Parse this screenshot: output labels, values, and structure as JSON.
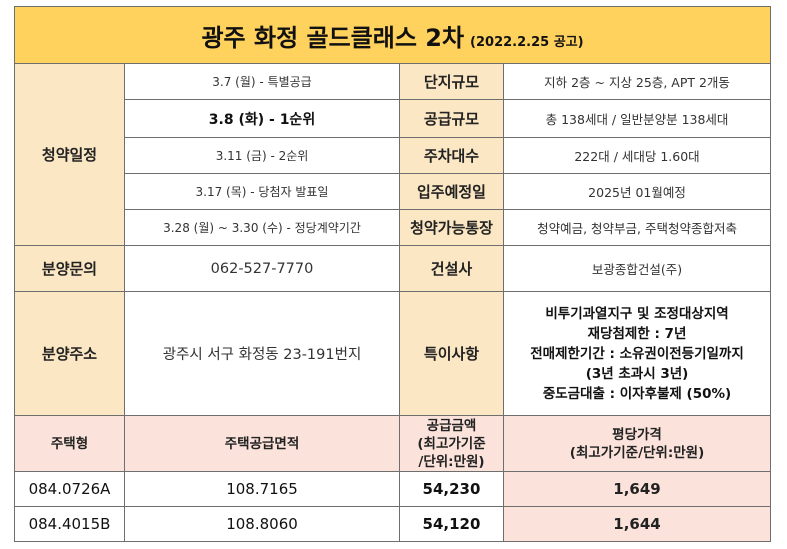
{
  "title": "광주 화정 골드클래스 2차",
  "announcement_date": "(2022.2.25 공고)",
  "schedule": {
    "label": "청약일정",
    "items": [
      "3.7 (월) - 특별공급",
      "3.8 (화) - 1순위",
      "3.11 (금) - 2순위",
      "3.17 (목) - 당첨자 발표일",
      "3.28 (월) ~ 3.30 (수) - 정당계약기간"
    ]
  },
  "info": [
    {
      "label": "단지규모",
      "value": "지하 2층 ~ 지상 25층, APT 2개동"
    },
    {
      "label": "공급규모",
      "value": "총 138세대 / 일반분양분 138세대"
    },
    {
      "label": "주차대수",
      "value": "222대 / 세대당 1.60대"
    },
    {
      "label": "입주예정일",
      "value": "2025년 01월예정"
    },
    {
      "label": "청약가능통장",
      "value": "청약예금, 청약부금, 주택청약종합저축"
    }
  ],
  "inquiry": {
    "label": "분양문의",
    "value": "062-527-7770"
  },
  "builder": {
    "label": "건설사",
    "value": "보광종합건설(주)"
  },
  "address": {
    "label": "분양주소",
    "value": "광주시 서구 화정동 23-191번지"
  },
  "notes": {
    "label": "특이사항",
    "lines": [
      "비투기과열지구 및 조정대상지역",
      "재당첨제한 : 7년",
      "전매제한기간 : 소유권이전등기일까지",
      "(3년 초과시 3년)",
      "중도금대출 : 이자후불제 (50%)"
    ]
  },
  "price_table": {
    "headers": {
      "type": "주택형",
      "area": "주택공급면적",
      "supply_price": [
        "공급금액",
        "(최고가기준",
        "/단위:만원)"
      ],
      "pyeong_price": [
        "평당가격",
        "(최고가기준/단위:만원)"
      ]
    },
    "rows": [
      {
        "type": "084.0726A",
        "area": "108.7165",
        "supply_price": "54,230",
        "pyeong_price": "1,649"
      },
      {
        "type": "084.4015B",
        "area": "108.8060",
        "supply_price": "54,120",
        "pyeong_price": "1,644"
      }
    ]
  },
  "colors": {
    "title_bg": "#ffd25e",
    "label_bg": "#fbe7c4",
    "price_header_bg": "#fbe3dc"
  }
}
